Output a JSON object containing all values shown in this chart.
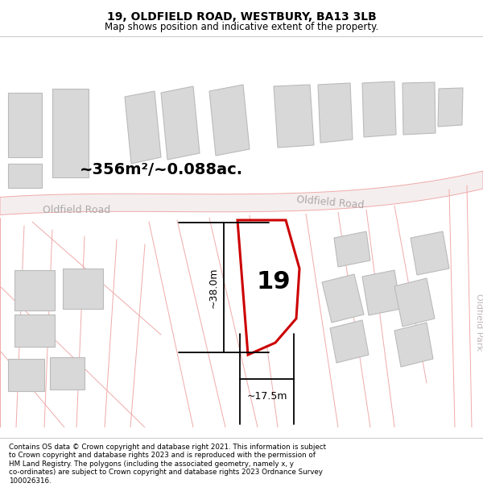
{
  "title": "19, OLDFIELD ROAD, WESTBURY, BA13 3LB",
  "subtitle": "Map shows position and indicative extent of the property.",
  "footer": "Contains OS data © Crown copyright and database right 2021. This information is subject\nto Crown copyright and database rights 2023 and is reproduced with the permission of\nHM Land Registry. The polygons (including the associated geometry, namely x, y\nco-ordinates) are subject to Crown copyright and database rights 2023 Ordnance Survey\n100026316.",
  "area_label": "~356m²/~0.088ac.",
  "width_label": "~17.5m",
  "height_label": "~38.0m",
  "number_label": "19",
  "road_label_left": "Oldfield Road",
  "road_label_right_map": "Oldfield Road",
  "park_label": "Oldfield Park",
  "bg_color": "#ffffff",
  "map_bg": "#ffffff",
  "plot_color": "#cc0000",
  "building_fill": "#d8d8d8",
  "building_edge": "#bbbbbb",
  "road_line": "#f0aaaa",
  "road_fill": "#f7f0f0",
  "title_fontsize": 10,
  "subtitle_fontsize": 8.5,
  "footer_fontsize": 6.3
}
